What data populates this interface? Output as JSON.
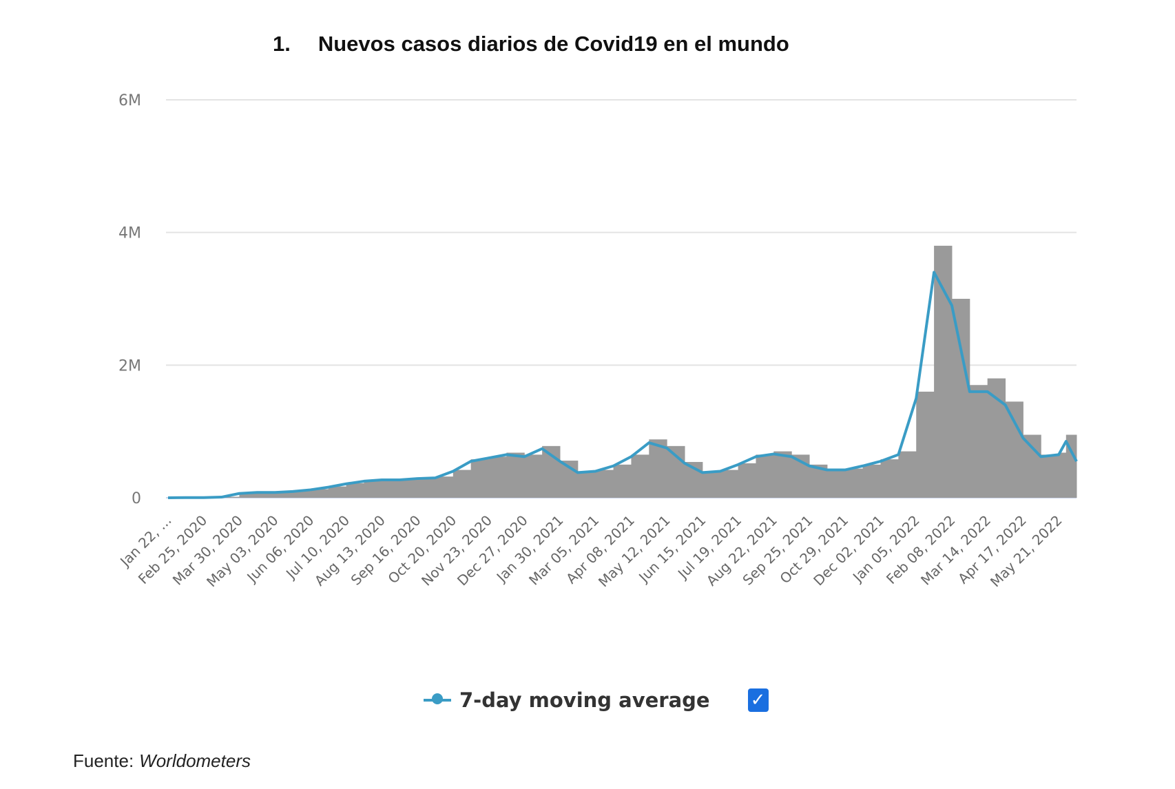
{
  "title": {
    "number": "1.",
    "text": "Nuevos casos diarios de Covid19 en el mundo"
  },
  "legend": {
    "label": "7-day moving average",
    "checked": true,
    "checkbox_symbol": "✓"
  },
  "source": {
    "label": "Fuente:",
    "value": "Worldometers"
  },
  "colors": {
    "bars": "#9a9a9a",
    "line": "#3a9cc5",
    "grid": "#e3e3e3",
    "checkbox": "#1a6fe0"
  },
  "chart_data": {
    "type": "bar",
    "title": "Nuevos casos diarios de Covid19 en el mundo",
    "xlabel": "",
    "ylabel": "",
    "ylim": [
      0,
      6000000
    ],
    "yticks": [
      0,
      2000000,
      4000000,
      6000000
    ],
    "ytick_labels": [
      "0",
      "2M",
      "4M",
      "6M"
    ],
    "xlim": [
      "2020-01-22",
      "2022-06-07"
    ],
    "xtick_labels": [
      "Jan 22, ...",
      "Feb 25, 2020",
      "Mar 30, 2020",
      "May 03, 2020",
      "Jun 06, 2020",
      "Jul 10, 2020",
      "Aug 13, 2020",
      "Sep 16, 2020",
      "Oct 20, 2020",
      "Nov 23, 2020",
      "Dec 27, 2020",
      "Jan 30, 2021",
      "Mar 05, 2021",
      "Apr 08, 2021",
      "May 12, 2021",
      "Jun 15, 2021",
      "Jul 19, 2021",
      "Aug 22, 2021",
      "Sep 25, 2021",
      "Oct 29, 2021",
      "Dec 02, 2021",
      "Jan 05, 2022",
      "Feb 08, 2022",
      "Mar 14, 2022",
      "Apr 17, 2022",
      "May 21, 2022"
    ],
    "xtick_dates": [
      "2020-01-22",
      "2020-02-25",
      "2020-03-30",
      "2020-05-03",
      "2020-06-06",
      "2020-07-10",
      "2020-08-13",
      "2020-09-16",
      "2020-10-20",
      "2020-11-23",
      "2020-12-27",
      "2021-01-30",
      "2021-03-05",
      "2021-04-08",
      "2021-05-12",
      "2021-06-15",
      "2021-07-19",
      "2021-08-22",
      "2021-09-25",
      "2021-10-29",
      "2021-12-02",
      "2022-01-05",
      "2022-02-08",
      "2022-03-14",
      "2022-04-17",
      "2022-05-21"
    ],
    "grid": true,
    "legend_position": "bottom",
    "x": [
      "2020-01-22",
      "2020-02-08",
      "2020-02-25",
      "2020-03-13",
      "2020-03-30",
      "2020-04-16",
      "2020-05-03",
      "2020-05-20",
      "2020-06-06",
      "2020-06-23",
      "2020-07-10",
      "2020-07-27",
      "2020-08-13",
      "2020-08-30",
      "2020-09-16",
      "2020-10-03",
      "2020-10-20",
      "2020-11-06",
      "2020-11-23",
      "2020-12-10",
      "2020-12-27",
      "2021-01-13",
      "2021-01-30",
      "2021-02-16",
      "2021-03-05",
      "2021-03-22",
      "2021-04-08",
      "2021-04-25",
      "2021-05-12",
      "2021-05-29",
      "2021-06-15",
      "2021-07-02",
      "2021-07-19",
      "2021-08-05",
      "2021-08-22",
      "2021-09-08",
      "2021-09-25",
      "2021-10-12",
      "2021-10-29",
      "2021-11-15",
      "2021-12-02",
      "2021-12-19",
      "2022-01-05",
      "2022-01-22",
      "2022-02-08",
      "2022-02-25",
      "2022-03-14",
      "2022-03-31",
      "2022-04-17",
      "2022-05-04",
      "2022-05-21",
      "2022-05-28",
      "2022-06-07"
    ],
    "series": [
      {
        "type": "bar",
        "values": [
          0,
          3000,
          3000,
          15000,
          70000,
          85000,
          85000,
          100000,
          130000,
          170000,
          220000,
          260000,
          280000,
          280000,
          300000,
          320000,
          420000,
          580000,
          620000,
          680000,
          650000,
          780000,
          560000,
          400000,
          420000,
          500000,
          650000,
          880000,
          780000,
          540000,
          400000,
          420000,
          520000,
          650000,
          700000,
          650000,
          500000,
          440000,
          440000,
          500000,
          580000,
          700000,
          1600000,
          3800000,
          3000000,
          1700000,
          1800000,
          1450000,
          950000,
          650000,
          680000,
          950000,
          560000
        ]
      },
      {
        "type": "line",
        "name": "7-day moving average",
        "values": [
          0,
          3000,
          3000,
          10000,
          65000,
          80000,
          80000,
          95000,
          120000,
          160000,
          210000,
          250000,
          270000,
          270000,
          290000,
          300000,
          400000,
          550000,
          600000,
          650000,
          620000,
          740000,
          550000,
          380000,
          400000,
          480000,
          620000,
          830000,
          750000,
          520000,
          380000,
          400000,
          500000,
          620000,
          660000,
          620000,
          480000,
          420000,
          420000,
          480000,
          550000,
          650000,
          1500000,
          3400000,
          2900000,
          1600000,
          1600000,
          1400000,
          900000,
          620000,
          650000,
          850000,
          550000
        ]
      }
    ]
  }
}
